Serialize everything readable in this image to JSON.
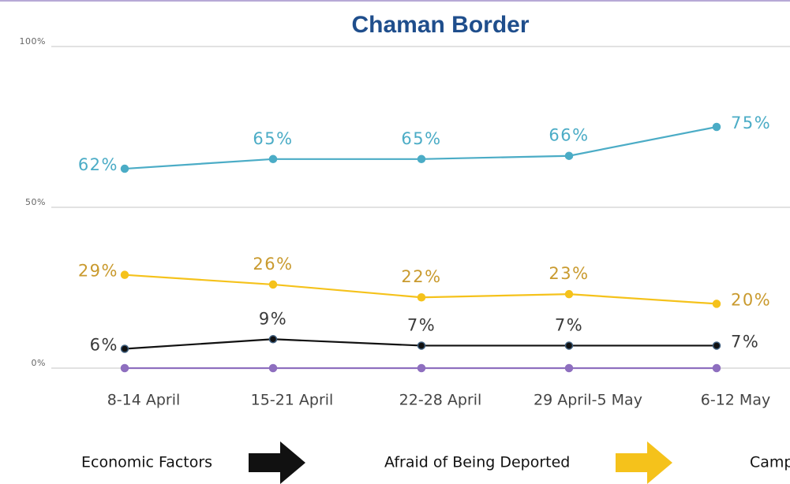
{
  "chart_data": {
    "type": "line",
    "title": "Chaman Border",
    "categories": [
      "8-14 April",
      "15-21 April",
      "22-28 April",
      "29 April-5 May",
      "6-12 May"
    ],
    "ylim": [
      0,
      100
    ],
    "yticks": [
      {
        "value": 0,
        "label": "0%"
      },
      {
        "value": 50,
        "label": "50%"
      },
      {
        "value": 100,
        "label": "100%"
      }
    ],
    "grid": true,
    "legend": "bottom",
    "series": [
      {
        "name": "Camp",
        "color": "#4bacc6",
        "label_color": "#4bacc6",
        "values": [
          62,
          65,
          65,
          66,
          75
        ],
        "value_labels": [
          "62%",
          "65%",
          "65%",
          "66%",
          "75%"
        ]
      },
      {
        "name": "Afraid of Being Deported",
        "color": "#f5c21b",
        "label_color": "#c99a2e",
        "values": [
          29,
          26,
          22,
          23,
          20
        ],
        "value_labels": [
          "29%",
          "26%",
          "22%",
          "23%",
          "20%"
        ]
      },
      {
        "name": "Economic Factors",
        "color": "#111111",
        "label_color": "#3a3a3a",
        "values": [
          6,
          9,
          7,
          7,
          7
        ],
        "value_labels": [
          "6%",
          "9%",
          "7%",
          "7%",
          "7%"
        ]
      },
      {
        "color": "#8e6fbf",
        "values": [
          0,
          0,
          0,
          0,
          0
        ]
      }
    ]
  }
}
